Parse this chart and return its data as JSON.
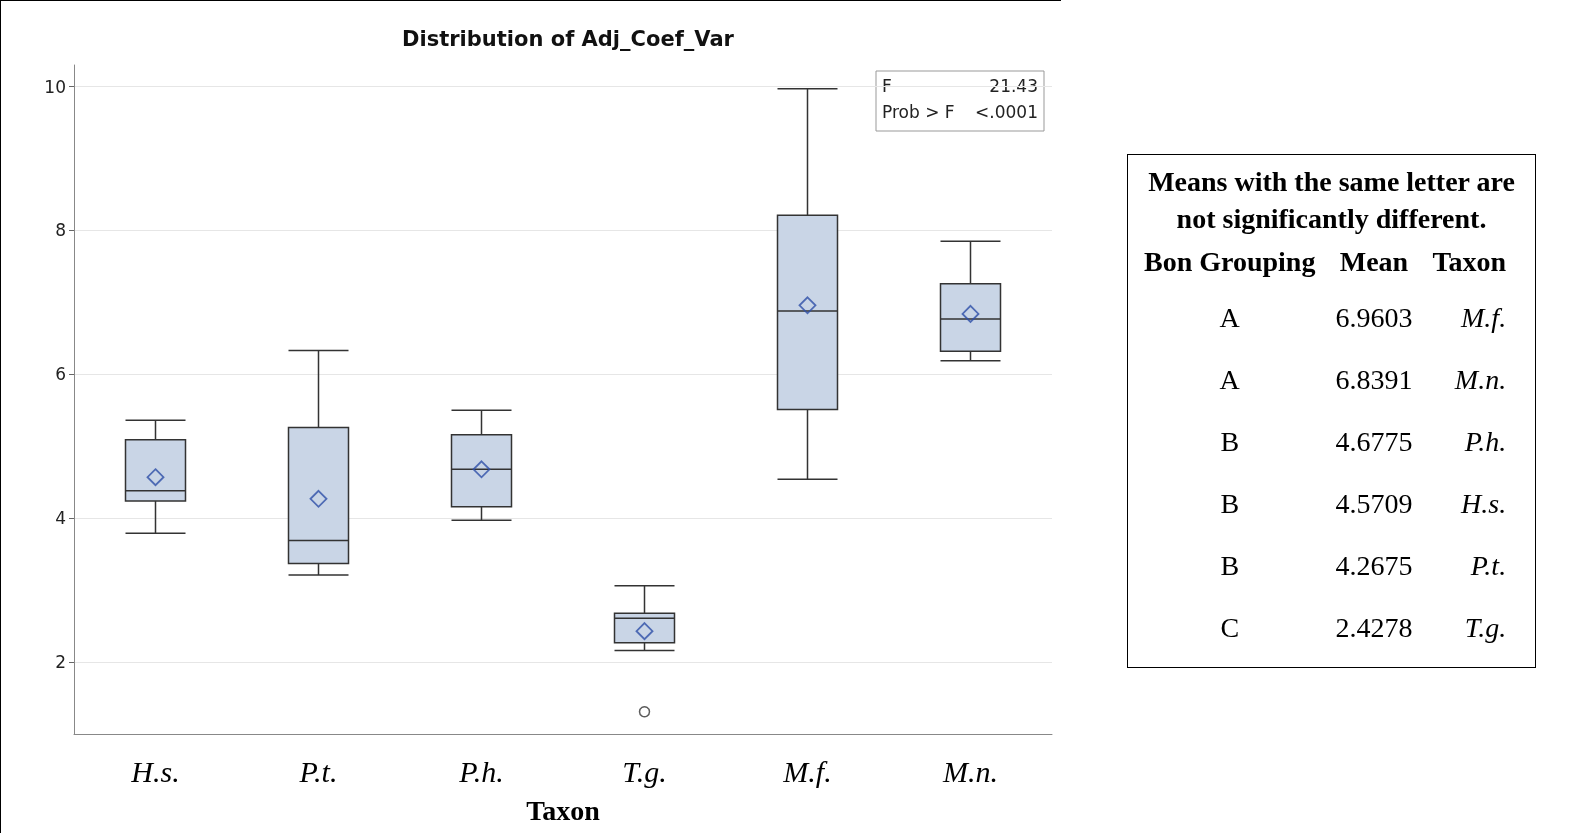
{
  "chart_data": [
    {
      "type": "box",
      "title": "Distribution of Adj_Coef_Var",
      "xlabel": "Taxon",
      "categories": [
        "H.s.",
        "P.t.",
        "P.h.",
        "T.g.",
        "M.f.",
        "M.n."
      ],
      "color": "#c9d5e6",
      "boxes": [
        {
          "low": 3.79,
          "q1": 4.24,
          "median": 4.38,
          "q3": 5.09,
          "high": 5.36,
          "mean": 4.57
        },
        {
          "low": 3.21,
          "q1": 3.37,
          "median": 3.69,
          "q3": 5.26,
          "high": 6.33,
          "mean": 4.27
        },
        {
          "low": 3.97,
          "q1": 4.16,
          "median": 4.68,
          "q3": 5.16,
          "high": 5.5,
          "mean": 4.68
        },
        {
          "low": 2.16,
          "q1": 2.27,
          "median": 2.61,
          "q3": 2.68,
          "high": 3.06,
          "mean": 2.43,
          "outliers": [
            1.31
          ]
        },
        {
          "low": 4.54,
          "q1": 5.51,
          "median": 6.88,
          "q3": 8.21,
          "high": 9.97,
          "mean": 6.96
        },
        {
          "low": 6.19,
          "q1": 6.32,
          "median": 6.77,
          "q3": 7.26,
          "high": 7.85,
          "mean": 6.84
        }
      ],
      "ylim": [
        1,
        10.3
      ],
      "yticks": [
        2,
        4,
        6,
        8,
        10
      ],
      "grid": "y",
      "annotations": [
        "F 21.43",
        "Prob > F <.0001"
      ]
    },
    {
      "type": "other",
      "title": "Means with the same letter are not significantly different.",
      "annotations": [
        "Bon Grouping",
        "Mean",
        "Taxon",
        "A",
        "6.9603",
        "M.f.",
        "A",
        "6.8391",
        "M.n.",
        "B",
        "4.6775",
        "P.h.",
        "B",
        "4.5709",
        "H.s.",
        "B",
        "4.2675",
        "P.t.",
        "C",
        "2.4278",
        "T.g."
      ]
    }
  ]
}
